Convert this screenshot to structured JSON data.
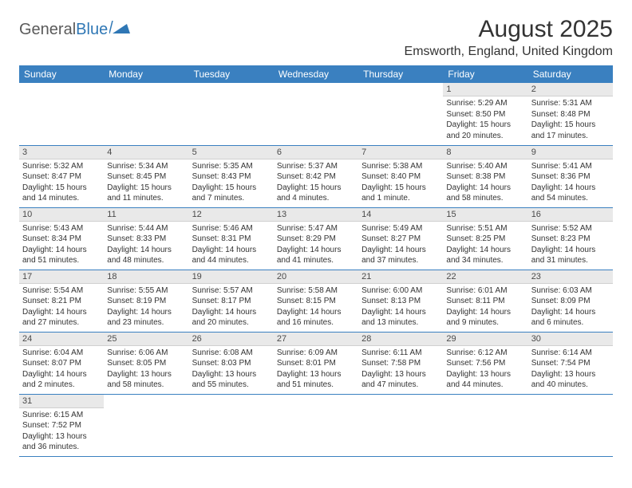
{
  "logo": {
    "text1": "General",
    "text2": "Blue"
  },
  "title": "August 2025",
  "location": "Emsworth, England, United Kingdom",
  "colors": {
    "header_bg": "#3a80c0",
    "header_text": "#ffffff",
    "daynum_bg": "#e9e9e9",
    "daynum_text": "#4a4a4a",
    "body_text": "#333333",
    "logo_gray": "#5a5a5a",
    "logo_blue": "#2f77b5",
    "border": "#3a80c0"
  },
  "weekdays": [
    "Sunday",
    "Monday",
    "Tuesday",
    "Wednesday",
    "Thursday",
    "Friday",
    "Saturday"
  ],
  "weeks": [
    [
      null,
      null,
      null,
      null,
      null,
      {
        "n": "1",
        "sr": "5:29 AM",
        "ss": "8:50 PM",
        "dl": "15 hours and 20 minutes."
      },
      {
        "n": "2",
        "sr": "5:31 AM",
        "ss": "8:48 PM",
        "dl": "15 hours and 17 minutes."
      }
    ],
    [
      {
        "n": "3",
        "sr": "5:32 AM",
        "ss": "8:47 PM",
        "dl": "15 hours and 14 minutes."
      },
      {
        "n": "4",
        "sr": "5:34 AM",
        "ss": "8:45 PM",
        "dl": "15 hours and 11 minutes."
      },
      {
        "n": "5",
        "sr": "5:35 AM",
        "ss": "8:43 PM",
        "dl": "15 hours and 7 minutes."
      },
      {
        "n": "6",
        "sr": "5:37 AM",
        "ss": "8:42 PM",
        "dl": "15 hours and 4 minutes."
      },
      {
        "n": "7",
        "sr": "5:38 AM",
        "ss": "8:40 PM",
        "dl": "15 hours and 1 minute."
      },
      {
        "n": "8",
        "sr": "5:40 AM",
        "ss": "8:38 PM",
        "dl": "14 hours and 58 minutes."
      },
      {
        "n": "9",
        "sr": "5:41 AM",
        "ss": "8:36 PM",
        "dl": "14 hours and 54 minutes."
      }
    ],
    [
      {
        "n": "10",
        "sr": "5:43 AM",
        "ss": "8:34 PM",
        "dl": "14 hours and 51 minutes."
      },
      {
        "n": "11",
        "sr": "5:44 AM",
        "ss": "8:33 PM",
        "dl": "14 hours and 48 minutes."
      },
      {
        "n": "12",
        "sr": "5:46 AM",
        "ss": "8:31 PM",
        "dl": "14 hours and 44 minutes."
      },
      {
        "n": "13",
        "sr": "5:47 AM",
        "ss": "8:29 PM",
        "dl": "14 hours and 41 minutes."
      },
      {
        "n": "14",
        "sr": "5:49 AM",
        "ss": "8:27 PM",
        "dl": "14 hours and 37 minutes."
      },
      {
        "n": "15",
        "sr": "5:51 AM",
        "ss": "8:25 PM",
        "dl": "14 hours and 34 minutes."
      },
      {
        "n": "16",
        "sr": "5:52 AM",
        "ss": "8:23 PM",
        "dl": "14 hours and 31 minutes."
      }
    ],
    [
      {
        "n": "17",
        "sr": "5:54 AM",
        "ss": "8:21 PM",
        "dl": "14 hours and 27 minutes."
      },
      {
        "n": "18",
        "sr": "5:55 AM",
        "ss": "8:19 PM",
        "dl": "14 hours and 23 minutes."
      },
      {
        "n": "19",
        "sr": "5:57 AM",
        "ss": "8:17 PM",
        "dl": "14 hours and 20 minutes."
      },
      {
        "n": "20",
        "sr": "5:58 AM",
        "ss": "8:15 PM",
        "dl": "14 hours and 16 minutes."
      },
      {
        "n": "21",
        "sr": "6:00 AM",
        "ss": "8:13 PM",
        "dl": "14 hours and 13 minutes."
      },
      {
        "n": "22",
        "sr": "6:01 AM",
        "ss": "8:11 PM",
        "dl": "14 hours and 9 minutes."
      },
      {
        "n": "23",
        "sr": "6:03 AM",
        "ss": "8:09 PM",
        "dl": "14 hours and 6 minutes."
      }
    ],
    [
      {
        "n": "24",
        "sr": "6:04 AM",
        "ss": "8:07 PM",
        "dl": "14 hours and 2 minutes."
      },
      {
        "n": "25",
        "sr": "6:06 AM",
        "ss": "8:05 PM",
        "dl": "13 hours and 58 minutes."
      },
      {
        "n": "26",
        "sr": "6:08 AM",
        "ss": "8:03 PM",
        "dl": "13 hours and 55 minutes."
      },
      {
        "n": "27",
        "sr": "6:09 AM",
        "ss": "8:01 PM",
        "dl": "13 hours and 51 minutes."
      },
      {
        "n": "28",
        "sr": "6:11 AM",
        "ss": "7:58 PM",
        "dl": "13 hours and 47 minutes."
      },
      {
        "n": "29",
        "sr": "6:12 AM",
        "ss": "7:56 PM",
        "dl": "13 hours and 44 minutes."
      },
      {
        "n": "30",
        "sr": "6:14 AM",
        "ss": "7:54 PM",
        "dl": "13 hours and 40 minutes."
      }
    ],
    [
      {
        "n": "31",
        "sr": "6:15 AM",
        "ss": "7:52 PM",
        "dl": "13 hours and 36 minutes."
      },
      null,
      null,
      null,
      null,
      null,
      null
    ]
  ],
  "labels": {
    "sunrise": "Sunrise:",
    "sunset": "Sunset:",
    "daylight": "Daylight:"
  }
}
